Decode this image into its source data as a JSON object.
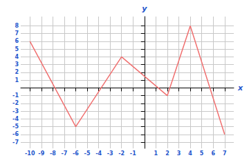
{
  "chart_data": {
    "type": "line",
    "x": [
      -10,
      -6,
      -2,
      2,
      4,
      7
    ],
    "values": [
      6,
      -5,
      4,
      -1,
      8,
      -6
    ],
    "color": "#f07070",
    "xlabel": "x",
    "ylabel": "y",
    "xlim": [
      -10.8,
      7.8
    ],
    "ylim": [
      -7.8,
      9.2
    ],
    "xticks": [
      -10,
      -9,
      -8,
      -7,
      -6,
      -5,
      -4,
      -3,
      -2,
      -1,
      1,
      2,
      3,
      4,
      5,
      6,
      7
    ],
    "yticks": [
      -7,
      -6,
      -5,
      -4,
      -3,
      -2,
      -1,
      1,
      2,
      3,
      4,
      5,
      6,
      7,
      8
    ],
    "grid": true
  }
}
